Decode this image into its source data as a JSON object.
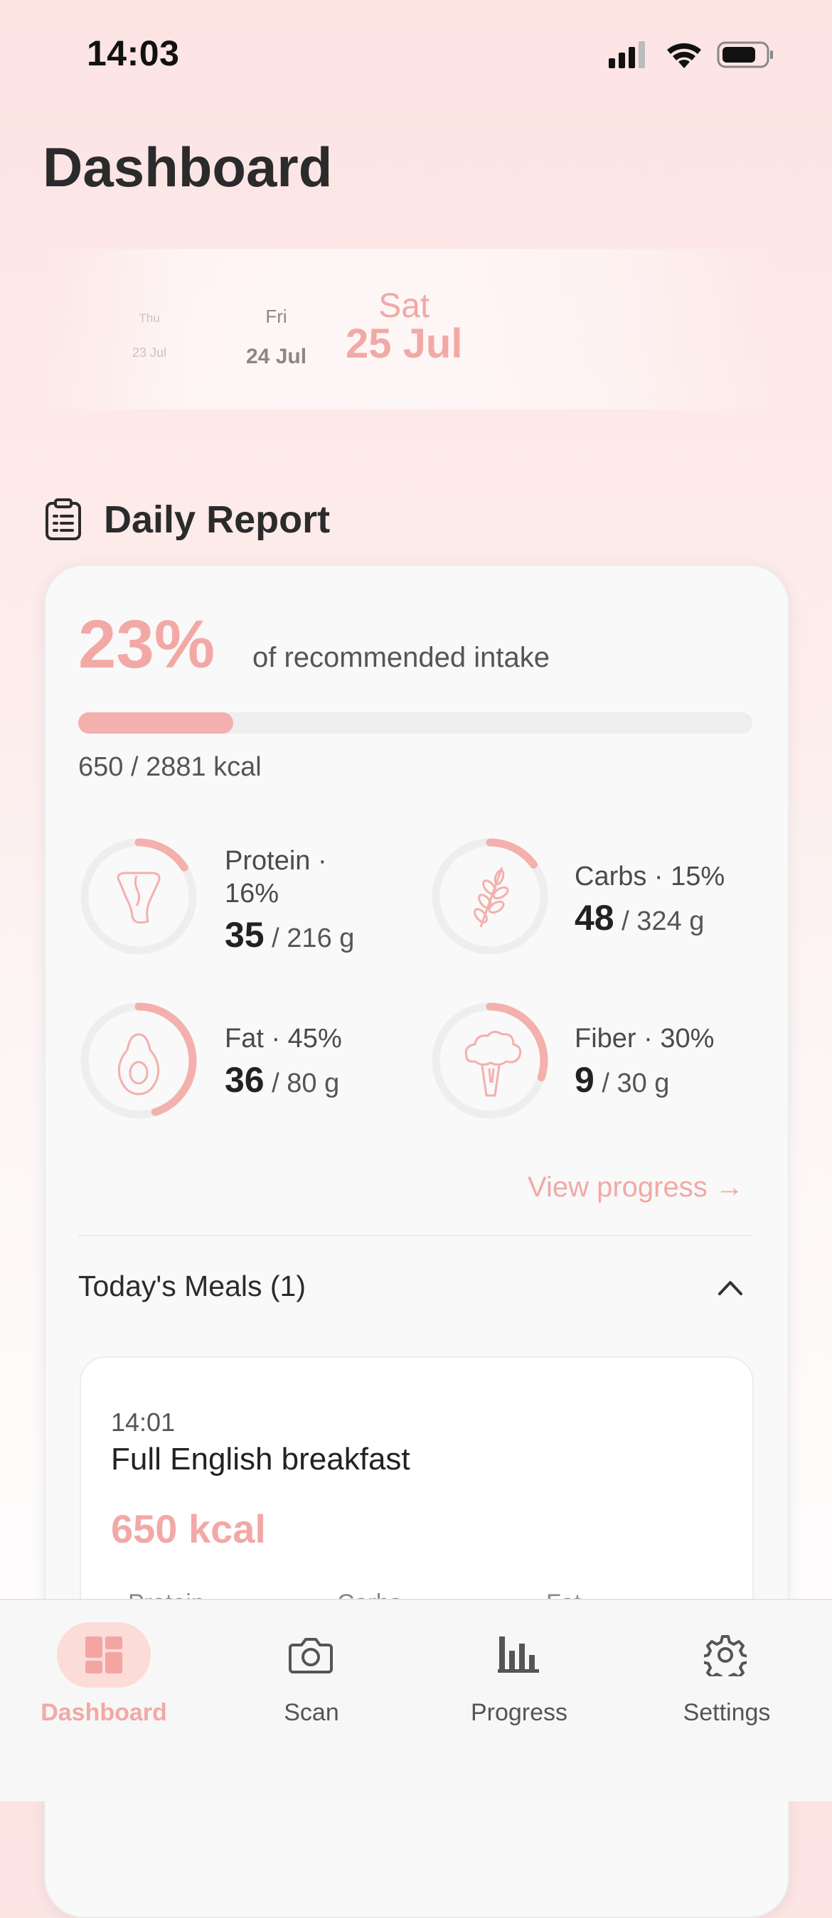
{
  "status_bar": {
    "time": "14:03"
  },
  "header": {
    "title": "Dashboard"
  },
  "date_picker": {
    "days": [
      {
        "weekday": "Thu",
        "date": "23 Jul"
      },
      {
        "weekday": "Fri",
        "date": "24 Jul"
      },
      {
        "weekday": "Sat",
        "date": "25 Jul",
        "selected": true
      }
    ]
  },
  "report": {
    "title": "Daily Report",
    "percent": "23%",
    "percent_value": 0.23,
    "percent_caption": "of recommended intake",
    "kcal_line": "650 / 2881 kcal",
    "macros": [
      {
        "name": "Protein · 16%",
        "label_line1": "Protein ·",
        "label_line2": "16%",
        "value": "35",
        "target": " / 216 g",
        "fraction": 0.16,
        "icon": "meat-icon"
      },
      {
        "name": "Carbs · 15%",
        "value": "48",
        "target": " / 324 g",
        "fraction": 0.15,
        "icon": "wheat-icon"
      },
      {
        "name": "Fat · 45%",
        "value": "36",
        "target": " / 80 g",
        "fraction": 0.45,
        "icon": "avocado-icon"
      },
      {
        "name": "Fiber · 30%",
        "value": "9",
        "target": " / 30 g",
        "fraction": 0.3,
        "icon": "broccoli-icon"
      }
    ],
    "view_progress": "View progress →"
  },
  "meals": {
    "title": "Today's Meals (1)",
    "items": [
      {
        "time": "14:01",
        "name": "Full English breakfast",
        "kcal": "650 kcal",
        "sub_labels": [
          "Protein",
          "Carbs",
          "Fat"
        ]
      }
    ]
  },
  "tabbar": {
    "tabs": [
      {
        "label": "Dashboard",
        "icon": "dashboard-icon",
        "active": true
      },
      {
        "label": "Scan",
        "icon": "camera-icon"
      },
      {
        "label": "Progress",
        "icon": "bar-chart-icon"
      },
      {
        "label": "Settings",
        "icon": "gear-icon"
      }
    ]
  },
  "colors": {
    "accent": "#f2a9a6",
    "ring_track": "#eeeeee"
  }
}
